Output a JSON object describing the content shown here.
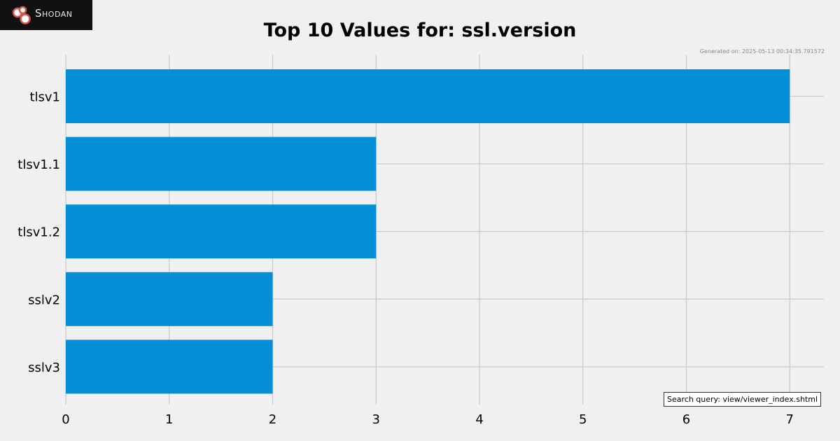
{
  "brand": {
    "name": "Shodan",
    "icon": "shodan-logo-icon",
    "background_color": "#111111",
    "icon_color": "#d9534f"
  },
  "chart_data": {
    "type": "bar",
    "orientation": "horizontal",
    "title": "Top 10 Values for: ssl.version",
    "categories": [
      "tlsv1",
      "tlsv1.1",
      "tlsv1.2",
      "sslv2",
      "sslv3"
    ],
    "values": [
      7,
      3,
      3,
      2,
      2
    ],
    "xlim": [
      0,
      7.33
    ],
    "xticks": [
      0,
      1,
      2,
      3,
      4,
      5,
      6,
      7
    ],
    "xlabel": "",
    "ylabel": "",
    "grid": true,
    "bar_color": "#038ed6",
    "grid_color": "#cbcbcb",
    "background_color": "#f0f0f0"
  },
  "footer": {
    "generated": "Generated on: 2025-05-13 00:34:35.791572",
    "search_query": "Search query: view/viewer_index.shtml"
  }
}
